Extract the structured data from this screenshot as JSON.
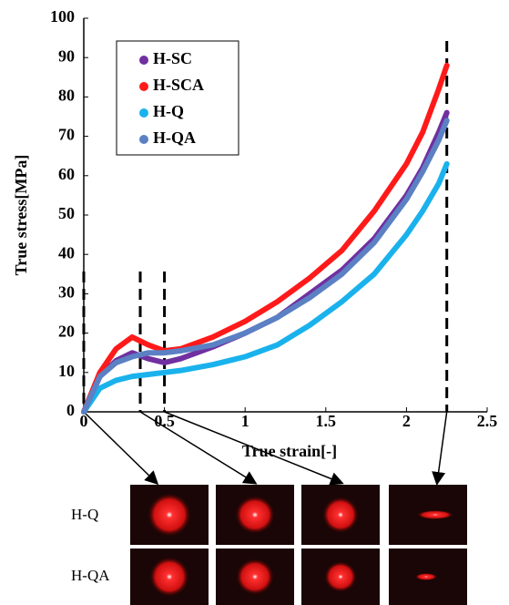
{
  "chart_data": {
    "type": "line",
    "xlabel": "True strain[-]",
    "ylabel": "True stress[MPa]",
    "x": [
      0,
      0.1,
      0.2,
      0.3,
      0.4,
      0.5,
      0.6,
      0.8,
      1.0,
      1.2,
      1.4,
      1.6,
      1.8,
      2.0,
      2.1,
      2.2,
      2.25
    ],
    "series": [
      {
        "name": "H-SC",
        "color": "#7030a0",
        "values": [
          0,
          9,
          13,
          15,
          13.5,
          12.5,
          13.5,
          16.5,
          20,
          24,
          30,
          36,
          44,
          55,
          62,
          71,
          76
        ]
      },
      {
        "name": "H-SCA",
        "color": "#ff1a1a",
        "values": [
          0,
          10,
          16,
          19,
          17,
          15.5,
          16,
          19,
          23,
          28,
          34,
          41,
          51,
          63,
          71,
          82,
          88
        ]
      },
      {
        "name": "H-Q",
        "color": "#1ab2ec",
        "values": [
          0,
          6,
          8,
          9,
          9.5,
          10,
          10.5,
          12,
          14,
          17,
          22,
          28,
          35,
          45,
          51,
          58,
          63
        ]
      },
      {
        "name": "H-QA",
        "color": "#5b80c4",
        "values": [
          0,
          9,
          12.5,
          14,
          15,
          15,
          15.5,
          17,
          20,
          24,
          29,
          35,
          43,
          54,
          61,
          69,
          74
        ]
      }
    ],
    "xlim": [
      0,
      2.5
    ],
    "xticks": [
      0,
      0.5,
      1,
      1.5,
      2,
      2.5
    ],
    "ylim": [
      0,
      100
    ],
    "yticks": [
      0,
      10,
      20,
      30,
      40,
      50,
      60,
      70,
      80,
      90,
      100
    ],
    "markers": [
      0,
      0.35,
      0.5,
      2.25
    ],
    "legend": "upper left"
  },
  "images": {
    "rows": [
      "H-Q",
      "H-QA"
    ]
  }
}
